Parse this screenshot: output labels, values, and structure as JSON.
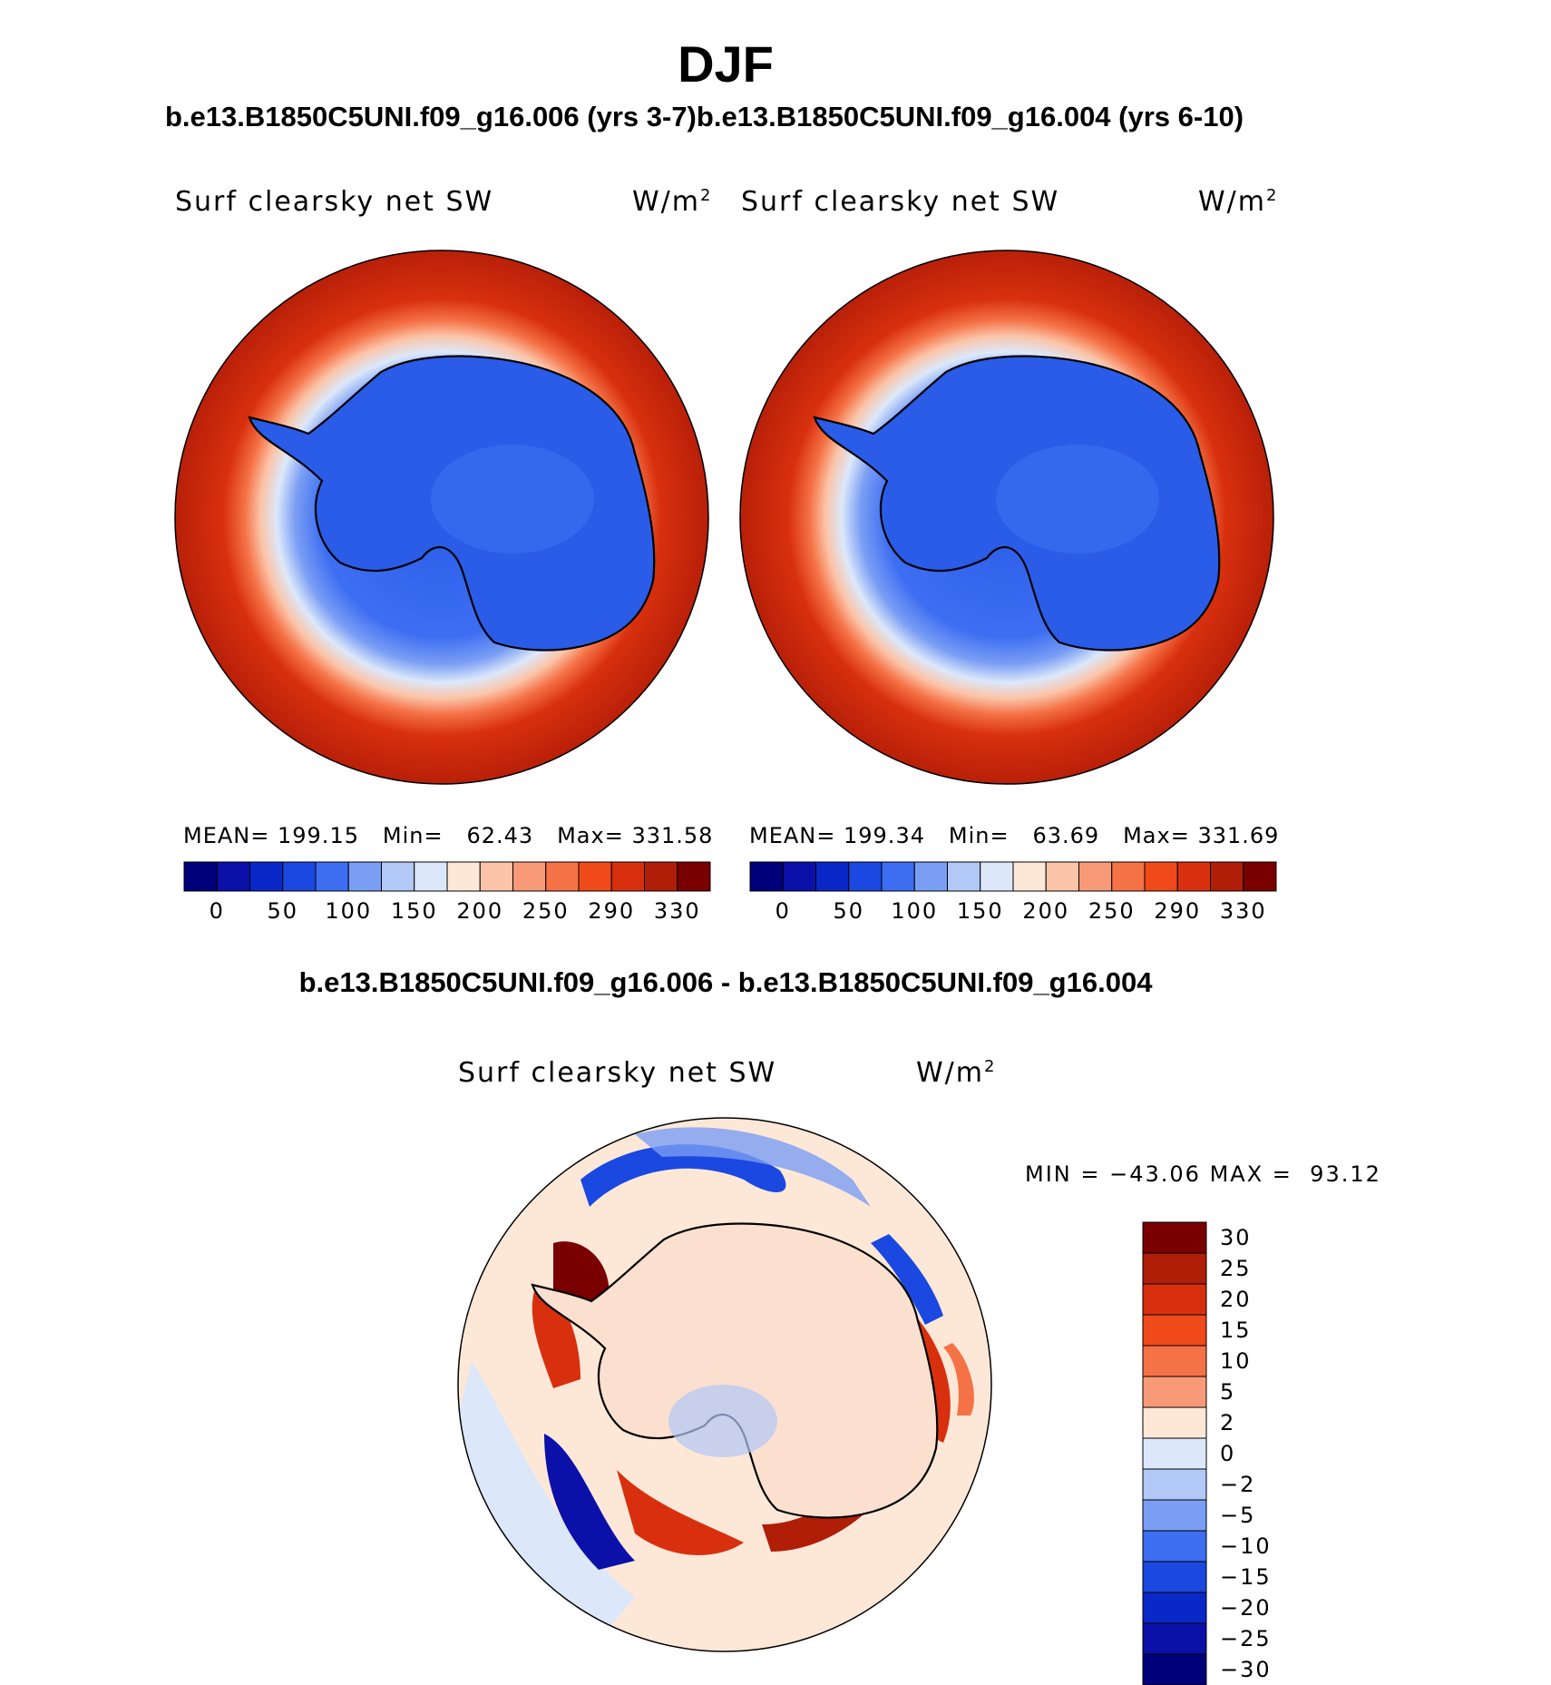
{
  "title": "DJF",
  "case_titles": {
    "left": "b.e13.B1850C5UNI.f09_g16.006 (yrs 3-7)",
    "right": "b.e13.B1850C5UNI.f09_g16.004 (yrs 6-10)"
  },
  "diff_title": "b.e13.B1850C5UNI.f09_g16.006 - b.e13.B1850C5UNI.f09_g16.004",
  "variable": "Surf clearsky net SW",
  "units_base": "W/m",
  "units_exp": "2",
  "panels": [
    {
      "id": "left",
      "mean_label": "MEAN=",
      "mean": "199.15",
      "min_label": "Min=",
      "min": "62.43",
      "max_label": "Max=",
      "max": "331.58"
    },
    {
      "id": "right",
      "mean_label": "MEAN=",
      "mean": "199.34",
      "min_label": "Min=",
      "min": "63.69",
      "max_label": "Max=",
      "max": "331.69"
    }
  ],
  "diff_stats": {
    "min_label": "MIN =",
    "min": "−43.06",
    "max_label": "MAX =",
    "max": "93.12"
  },
  "colorbar_abs": {
    "colors": [
      "#00007a",
      "#0a10a8",
      "#0a28c8",
      "#1a48e0",
      "#3d6ef2",
      "#7a9ef4",
      "#b2c8f6",
      "#dce8fa",
      "#fde8d8",
      "#fbc4a8",
      "#f89a78",
      "#f57246",
      "#f04a1a",
      "#d8300e",
      "#b01e08",
      "#7a0000"
    ],
    "labels": [
      "0",
      "50",
      "100",
      "150",
      "200",
      "250",
      "290",
      "330"
    ]
  },
  "colorbar_diff": {
    "colors": [
      "#7a0000",
      "#b01e08",
      "#d8300e",
      "#f04a1a",
      "#f57246",
      "#f89a78",
      "#fde8d8",
      "#dce8fa",
      "#b2c8f6",
      "#7a9ef4",
      "#3d6ef2",
      "#1a48e0",
      "#0a28c8",
      "#0a10a8",
      "#00007a"
    ],
    "labels": [
      "30",
      "25",
      "20",
      "15",
      "10",
      "5",
      "2",
      "0",
      "−2",
      "−5",
      "−10",
      "−15",
      "−20",
      "−25",
      "−30"
    ]
  }
}
